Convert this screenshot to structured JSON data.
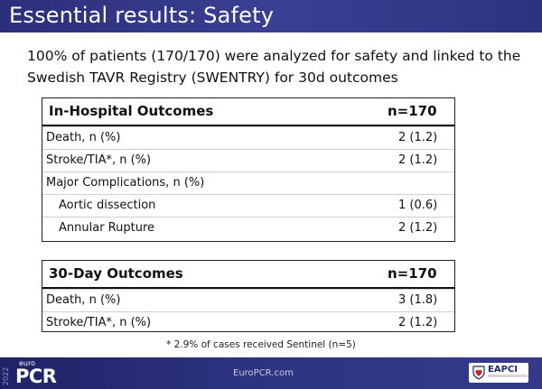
{
  "slide": {
    "title": "Essential results: Safety",
    "intro": "100% of patients (170/170) were analyzed for safety and linked to the Swedish TAVR Registry (SWENTRY) for 30d outcomes"
  },
  "in_hospital": {
    "header": "In-Hospital Outcomes",
    "n": "n=170",
    "rows": [
      {
        "label": "Death, n (%)",
        "value": "2 (1.2)"
      },
      {
        "label": "Stroke/TIA*, n (%)",
        "value": "2 (1.2)"
      },
      {
        "label": "Major Complications, n (%)",
        "value": ""
      },
      {
        "label": "Aortic dissection",
        "value": "1 (0.6)"
      },
      {
        "label": "Annular Rupture",
        "value": "2 (1.2)"
      }
    ]
  },
  "thirty_day": {
    "header": "30-Day Outcomes",
    "n": "n=170",
    "rows": [
      {
        "label": "Death, n (%)",
        "value": "3 (1.8)"
      },
      {
        "label": "Stroke/TIA*, n (%)",
        "value": "2 (1.2)"
      }
    ]
  },
  "footnote": "* 2.9% of cases received Sentinel (n=5)",
  "footer": {
    "year": "2022",
    "logo_small": "euro",
    "logo_main": "PCR",
    "site": "EuroPCR.com",
    "partner": "EAPCI"
  },
  "colors": {
    "title_bar": "#2c2f7a",
    "footer_bar": "#1f2266",
    "shield_red": "#c0262e"
  }
}
